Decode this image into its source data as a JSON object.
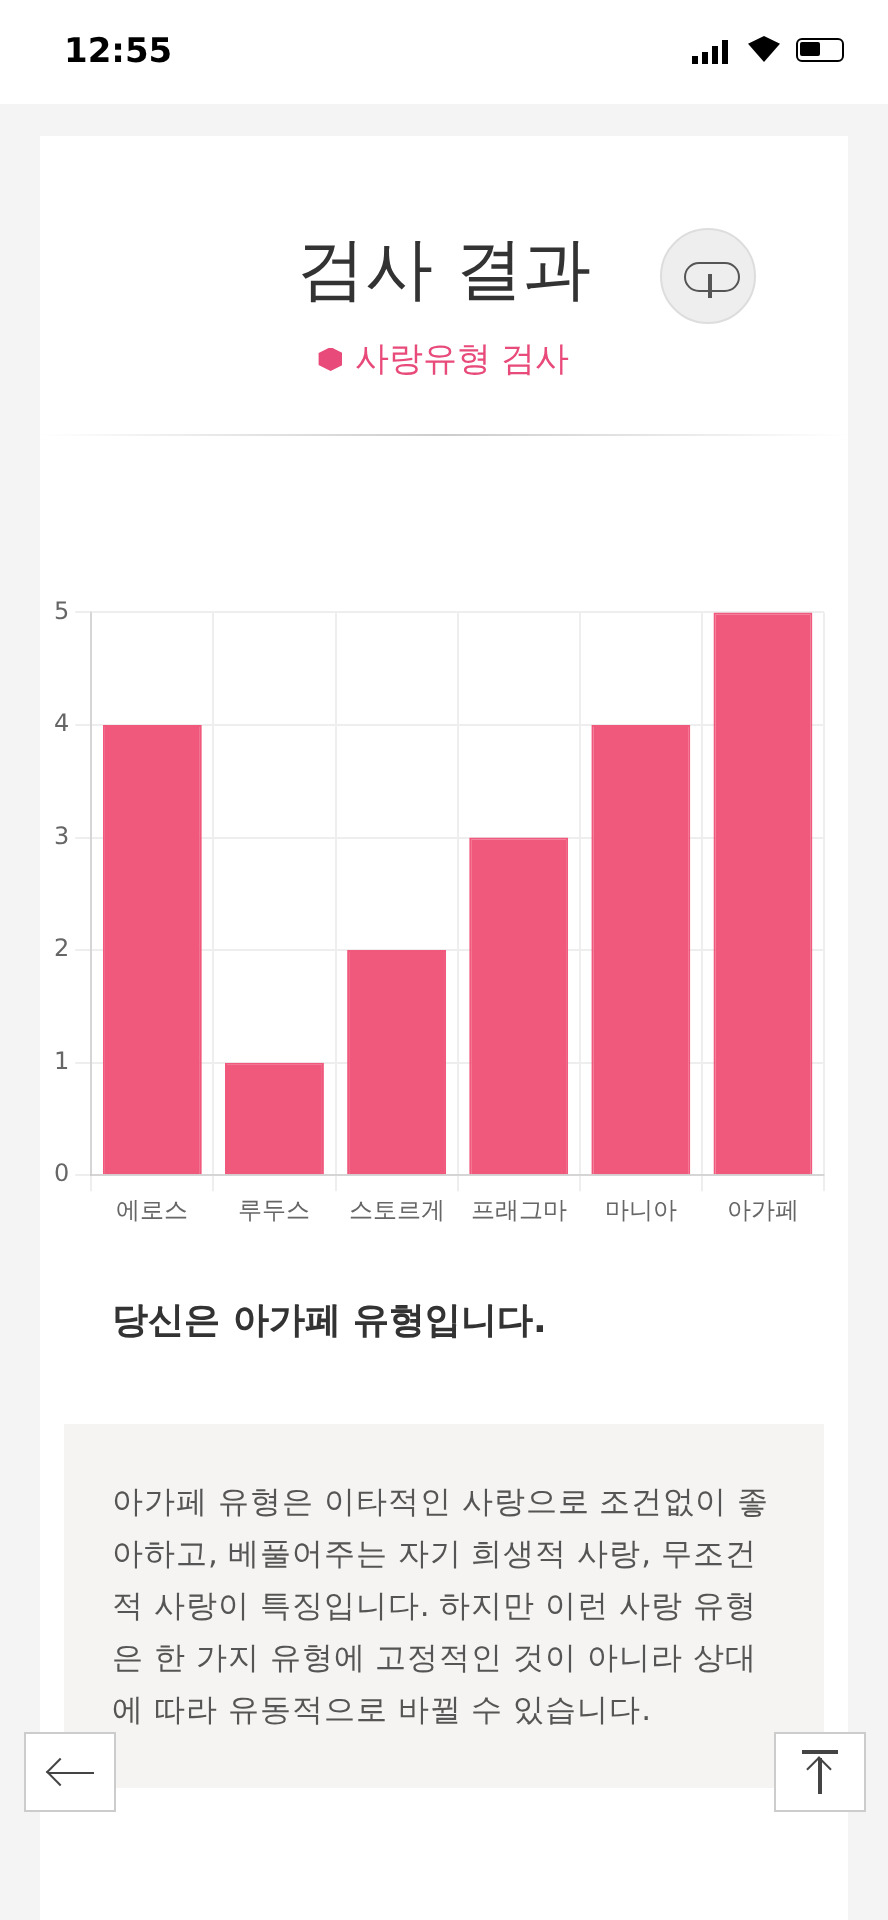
{
  "chart_data": {
    "type": "bar",
    "title": "검사 결과",
    "subtitle": "사랑유형 검사",
    "categories": [
      "에로스",
      "루두스",
      "스토르게",
      "프래그마",
      "마니아",
      "아가페"
    ],
    "values": [
      4,
      1,
      2,
      3,
      4,
      5
    ],
    "color": "#f0587c",
    "ylim": [
      0,
      5
    ],
    "yticks": [
      0,
      1,
      2,
      3,
      4,
      5
    ],
    "grid": true,
    "annotations": [
      "12:55",
      "당신은 아가페 유형입니다.",
      "아가페 유형은 이타적인 사랑으로 조건없이 좋아하고, 베풀어주는 자기 희생적 사랑, 무조건적 사랑이 특징입니다. 하지만 이런 사랑 유형은 한 가지 유형에 고정적인 것이 아니라 상대에 따라 유동적으로 바뀔 수 있습니다."
    ]
  }
}
